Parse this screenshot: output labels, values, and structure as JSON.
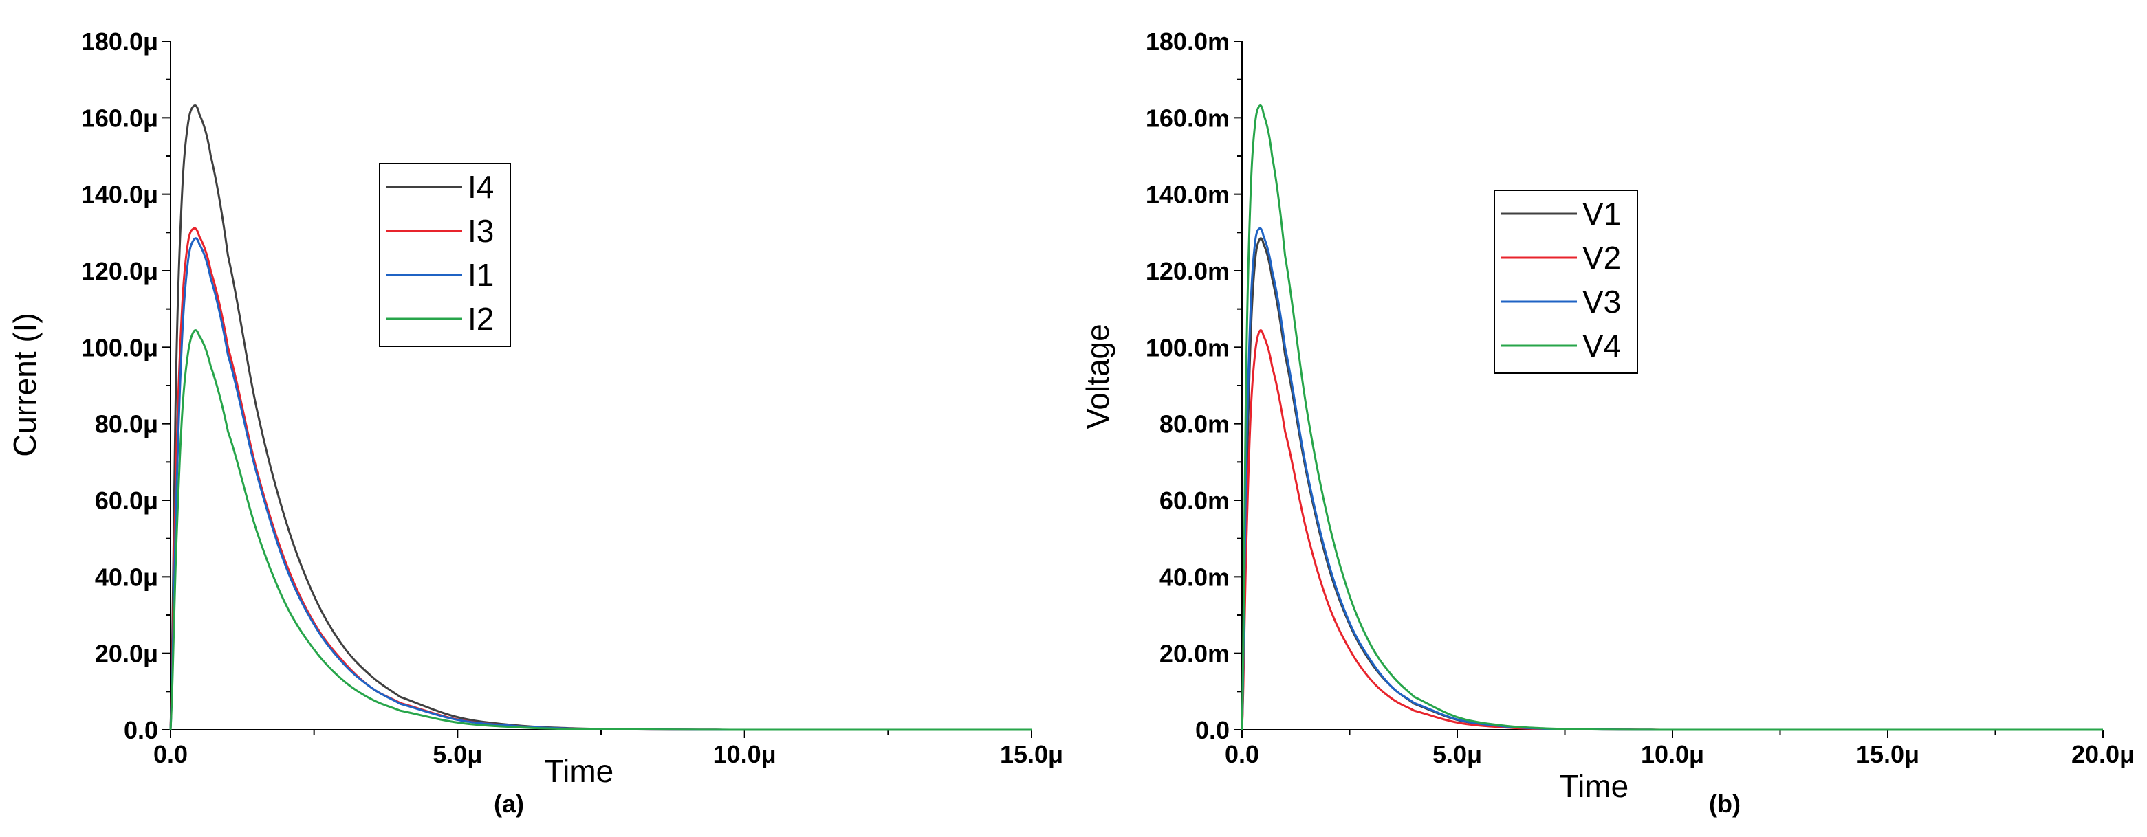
{
  "chart_data": [
    {
      "type": "line",
      "panel_label": "(a)",
      "xlabel": "Time",
      "ylabel": "Current (I)",
      "xlim": [
        0,
        15.0
      ],
      "ylim": [
        0,
        180.0
      ],
      "x_ticks": [
        0,
        5,
        10,
        15
      ],
      "x_tick_labels": [
        "0.0",
        "5.0μ",
        "10.0μ",
        "15.0μ"
      ],
      "y_ticks": [
        0,
        20,
        40,
        60,
        80,
        100,
        120,
        140,
        160,
        180
      ],
      "y_tick_labels": [
        "0.0",
        "20.0μ",
        "40.0μ",
        "60.0μ",
        "80.0μ",
        "100.0μ",
        "120.0μ",
        "140.0μ",
        "160.0μ",
        "180.0μ"
      ],
      "legend_position": "upper-center",
      "series": [
        {
          "name": "I4",
          "color": "#404040",
          "x": [
            0,
            0.1,
            0.2,
            0.3,
            0.4,
            0.5,
            0.7,
            1.0,
            1.5,
            2.0,
            2.5,
            3.0,
            3.5,
            4.0,
            5.0,
            6.0,
            7.0,
            8.0,
            10.0,
            15.0
          ],
          "values": [
            0,
            95,
            140,
            158,
            163,
            161,
            150,
            124,
            84,
            55,
            35,
            22,
            14,
            8.6,
            3.3,
            1.2,
            0.4,
            0.1,
            0,
            0
          ]
        },
        {
          "name": "I3",
          "color": "#e8242c",
          "x": [
            0,
            0.1,
            0.2,
            0.3,
            0.4,
            0.5,
            0.7,
            1.0,
            1.5,
            2.0,
            2.5,
            3.0,
            3.5,
            4.0,
            5.0,
            6.0,
            7.0,
            8.0,
            10.0,
            15.0
          ],
          "values": [
            0,
            70,
            110,
            127,
            131,
            129,
            120,
            100,
            68,
            44,
            28,
            18,
            11,
            7,
            2.7,
            1.0,
            0.3,
            0.1,
            0,
            0
          ]
        },
        {
          "name": "I1",
          "color": "#1f63c4",
          "x": [
            0,
            0.1,
            0.2,
            0.3,
            0.4,
            0.5,
            0.7,
            1.0,
            1.5,
            2.0,
            2.5,
            3.0,
            3.5,
            4.0,
            5.0,
            6.0,
            7.0,
            8.0,
            10.0,
            15.0
          ],
          "values": [
            0,
            60,
            102,
            122,
            128,
            127,
            118,
            98,
            67,
            43,
            27.5,
            17.5,
            11,
            6.8,
            2.6,
            1.0,
            0.3,
            0.1,
            0,
            0
          ]
        },
        {
          "name": "I2",
          "color": "#27a54a",
          "x": [
            0,
            0.1,
            0.2,
            0.3,
            0.4,
            0.5,
            0.7,
            1.0,
            1.5,
            2.0,
            2.5,
            3.0,
            3.5,
            4.0,
            5.0,
            6.0,
            7.0,
            8.0,
            10.0,
            15.0
          ],
          "values": [
            0,
            48,
            82,
            98,
            104,
            103,
            95,
            78,
            52,
            33,
            21,
            13,
            8,
            5,
            1.9,
            0.7,
            0.2,
            0.1,
            0,
            0
          ]
        }
      ]
    },
    {
      "type": "line",
      "panel_label": "(b)",
      "xlabel": "Time",
      "ylabel": "Voltage",
      "xlim": [
        0,
        20.0
      ],
      "ylim": [
        0,
        180.0
      ],
      "x_ticks": [
        0,
        5,
        10,
        15,
        20
      ],
      "x_tick_labels": [
        "0.0",
        "5.0μ",
        "10.0μ",
        "15.0μ",
        "20.0μ"
      ],
      "y_ticks": [
        0,
        20,
        40,
        60,
        80,
        100,
        120,
        140,
        160,
        180
      ],
      "y_tick_labels": [
        "0.0",
        "20.0m",
        "40.0m",
        "60.0m",
        "80.0m",
        "100.0m",
        "120.0m",
        "140.0m",
        "160.0m",
        "180.0m"
      ],
      "legend_position": "upper-center",
      "series": [
        {
          "name": "V1",
          "color": "#404040",
          "x": [
            0,
            0.1,
            0.2,
            0.3,
            0.4,
            0.5,
            0.7,
            1.0,
            1.5,
            2.0,
            2.5,
            3.0,
            3.5,
            4.0,
            5.0,
            6.0,
            7.0,
            8.0,
            10.0,
            20.0
          ],
          "values": [
            0,
            60,
            102,
            122,
            128,
            127,
            118,
            98,
            67,
            43,
            27.5,
            17.5,
            11,
            6.8,
            2.6,
            1.0,
            0.3,
            0.1,
            0,
            0
          ]
        },
        {
          "name": "V2",
          "color": "#e8242c",
          "x": [
            0,
            0.1,
            0.2,
            0.3,
            0.4,
            0.5,
            0.7,
            1.0,
            1.5,
            2.0,
            2.5,
            3.0,
            3.5,
            4.0,
            5.0,
            6.0,
            7.0,
            8.0,
            10.0,
            20.0
          ],
          "values": [
            0,
            48,
            82,
            98,
            104,
            103,
            95,
            78,
            52,
            33,
            21,
            13,
            8,
            5,
            1.9,
            0.7,
            0.2,
            0.1,
            0,
            0
          ]
        },
        {
          "name": "V3",
          "color": "#1f63c4",
          "x": [
            0,
            0.1,
            0.2,
            0.3,
            0.4,
            0.5,
            0.7,
            1.0,
            1.5,
            2.0,
            2.5,
            3.0,
            3.5,
            4.0,
            5.0,
            6.0,
            7.0,
            8.0,
            10.0,
            20.0
          ],
          "values": [
            0,
            70,
            110,
            127,
            131,
            129,
            120,
            100,
            68,
            44,
            28,
            18,
            11,
            7,
            2.7,
            1.0,
            0.3,
            0.1,
            0,
            0
          ]
        },
        {
          "name": "V4",
          "color": "#27a54a",
          "x": [
            0,
            0.1,
            0.2,
            0.3,
            0.4,
            0.5,
            0.7,
            1.0,
            1.5,
            2.0,
            2.5,
            3.0,
            3.5,
            4.0,
            5.0,
            6.0,
            7.0,
            8.0,
            10.0,
            20.0
          ],
          "values": [
            0,
            95,
            140,
            158,
            163,
            161,
            150,
            124,
            84,
            55,
            35,
            22,
            14,
            8.6,
            3.3,
            1.2,
            0.4,
            0.1,
            0,
            0
          ]
        }
      ]
    }
  ]
}
